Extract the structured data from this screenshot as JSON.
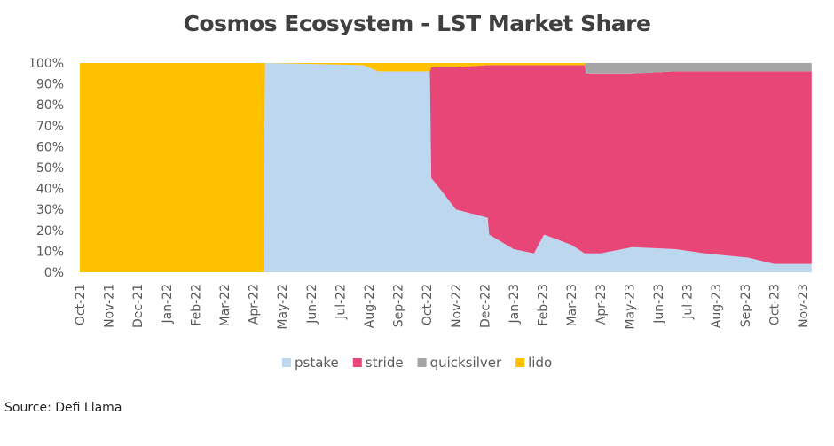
{
  "chart_data": {
    "type": "area",
    "stacked": true,
    "normalized": true,
    "title": "Cosmos Ecosystem - LST Market Share",
    "xlabel": "",
    "ylabel": "",
    "ylim": [
      0,
      100
    ],
    "y_ticks": [
      "0%",
      "10%",
      "20%",
      "30%",
      "40%",
      "50%",
      "60%",
      "70%",
      "80%",
      "90%",
      "100%"
    ],
    "x_ticks": [
      "Oct-21",
      "Nov-21",
      "Dec-21",
      "Jan-22",
      "Feb-22",
      "Mar-22",
      "Apr-22",
      "May-22",
      "Jun-22",
      "Jul-22",
      "Aug-22",
      "Sep-22",
      "Oct-22",
      "Nov-22",
      "Dec-22",
      "Jan-23",
      "Feb-23",
      "Mar-23",
      "Apr-23",
      "May-23",
      "Jun-23",
      "Jul-23",
      "Aug-23",
      "Sep-23",
      "Oct-23",
      "Nov-23"
    ],
    "x_unit": "months since Oct-21",
    "x": [
      0,
      6.35,
      6.4,
      9.8,
      10.3,
      12.1,
      12.15,
      12.5,
      13,
      14.1,
      14.15,
      15,
      15.7,
      16.05,
      17,
      17.45,
      17.5,
      18,
      19.1,
      20.6,
      21.6,
      23.1,
      24,
      25.3
    ],
    "series": [
      {
        "name": "pstake",
        "color": "#bdd7ee",
        "values": [
          0,
          0,
          100,
          99,
          96,
          96,
          45,
          39,
          30,
          26,
          18,
          11,
          9,
          18,
          13,
          9,
          9,
          9,
          12,
          11,
          9,
          7,
          4,
          4
        ]
      },
      {
        "name": "stride",
        "color": "#e84677",
        "values": [
          0,
          0,
          0,
          0,
          0,
          0,
          53,
          59,
          68,
          73,
          81,
          88,
          90,
          81,
          86,
          90,
          86,
          86,
          83,
          85,
          87,
          89,
          92,
          92
        ]
      },
      {
        "name": "quicksilver",
        "color": "#a5a5a5",
        "values": [
          0,
          0,
          0,
          0,
          0,
          0,
          0,
          0,
          0,
          0,
          0,
          0,
          0,
          0,
          0,
          0,
          5,
          5,
          5,
          4,
          4,
          4,
          4,
          4
        ]
      },
      {
        "name": "lido",
        "color": "#ffc000",
        "values": [
          100,
          100,
          0,
          1,
          4,
          4,
          2,
          2,
          2,
          1,
          1,
          1,
          1,
          1,
          1,
          1,
          0,
          0,
          0,
          0,
          0,
          0,
          0,
          0
        ]
      }
    ],
    "legend_position": "bottom",
    "grid": false
  },
  "source": "Source: Defi Llama"
}
